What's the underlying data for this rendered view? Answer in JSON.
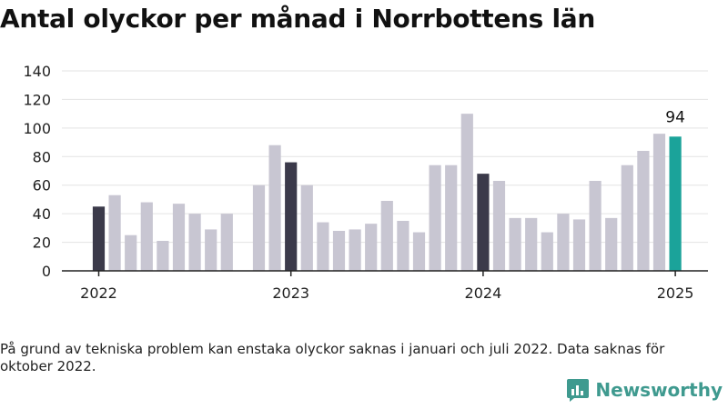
{
  "title": "Antal olyckor per månad i Norrbottens län",
  "footnote": "På grund av tekniska problem kan enstaka olyckor saknas i januari och juli 2022. Data saknas för oktober 2022.",
  "brand": {
    "name": "Newsworthy",
    "color": "#3f9a8f"
  },
  "colors": {
    "bar": "#c8c6d2",
    "january": "#3b3a4a",
    "latest": "#1ba39a",
    "grid": "#e3e3e3",
    "axis": "#222222"
  },
  "chart_data": {
    "type": "bar",
    "title": "Antal olyckor per månad i Norrbottens län",
    "xlabel": "",
    "ylabel": "",
    "ylim": [
      0,
      140
    ],
    "yticks": [
      0,
      20,
      40,
      60,
      80,
      100,
      120,
      140
    ],
    "xtick_labels": [
      "2022",
      "2023",
      "2024",
      "2025"
    ],
    "grid": true,
    "categories": [
      "2022-01",
      "2022-02",
      "2022-03",
      "2022-04",
      "2022-05",
      "2022-06",
      "2022-07",
      "2022-08",
      "2022-09",
      "2022-10",
      "2022-11",
      "2022-12",
      "2023-01",
      "2023-02",
      "2023-03",
      "2023-04",
      "2023-05",
      "2023-06",
      "2023-07",
      "2023-08",
      "2023-09",
      "2023-10",
      "2023-11",
      "2023-12",
      "2024-01",
      "2024-02",
      "2024-03",
      "2024-04",
      "2024-05",
      "2024-06",
      "2024-07",
      "2024-08",
      "2024-09",
      "2024-10",
      "2024-11",
      "2024-12",
      "2025-01"
    ],
    "values": [
      45,
      53,
      25,
      48,
      21,
      47,
      40,
      29,
      40,
      null,
      60,
      88,
      76,
      60,
      34,
      28,
      29,
      33,
      49,
      35,
      27,
      74,
      74,
      110,
      68,
      63,
      37,
      37,
      27,
      40,
      36,
      63,
      37,
      74,
      84,
      96,
      94
    ],
    "highlighted_label": "94"
  }
}
